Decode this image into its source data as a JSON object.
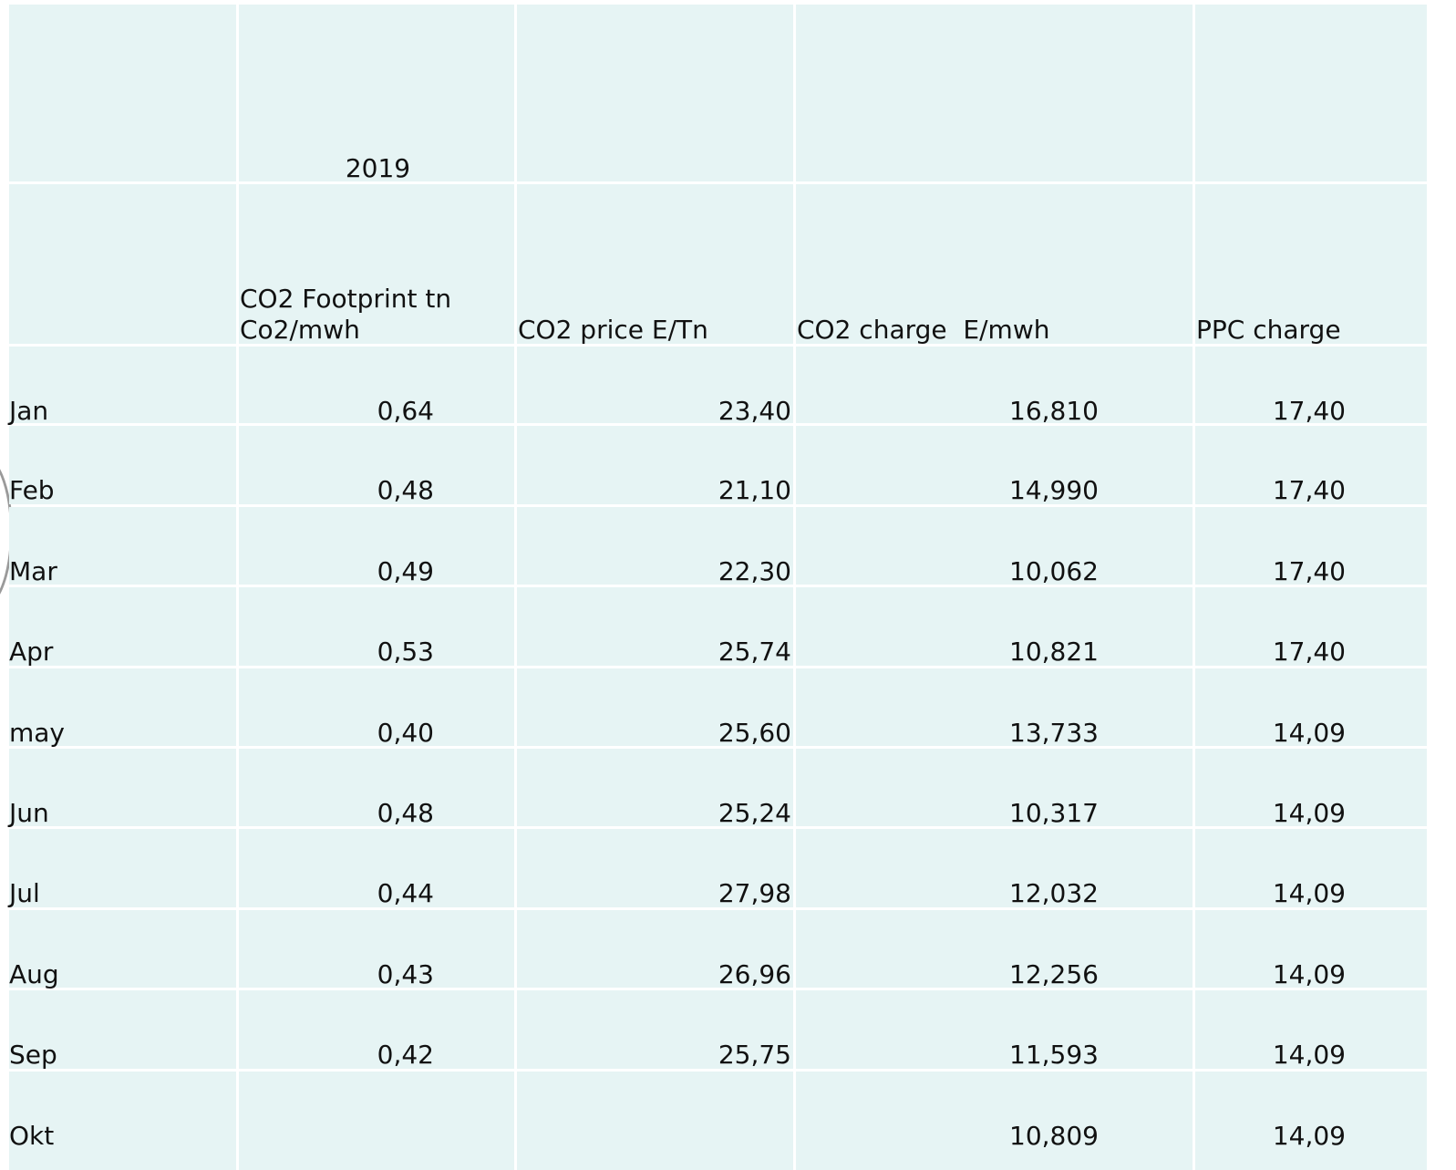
{
  "table": {
    "year": "2019",
    "headers": [
      "CO2 Footprint tn Co2/mwh",
      "CO2 price E/Tn",
      "CO2 charge  E/mwh",
      "PPC charge"
    ],
    "rows": [
      [
        "Jan",
        "0,64",
        "23,40",
        "16,810",
        "17,40"
      ],
      [
        "Feb",
        "0,48",
        "21,10",
        "14,990",
        "17,40"
      ],
      [
        "Mar",
        "0,49",
        "22,30",
        "10,062",
        "17,40"
      ],
      [
        "Apr",
        "0,53",
        "25,74",
        "10,821",
        "17,40"
      ],
      [
        "may",
        "0,40",
        "25,60",
        "13,733",
        "14,09"
      ],
      [
        "Jun",
        "0,48",
        "25,24",
        "10,317",
        "14,09"
      ],
      [
        "Jul",
        "0,44",
        "27,98",
        "12,032",
        "14,09"
      ],
      [
        "Aug",
        "0,43",
        "26,96",
        "12,256",
        "14,09"
      ],
      [
        "Sep",
        "0,42",
        "25,75",
        "11,593",
        "14,09"
      ],
      [
        "Okt",
        null,
        null,
        "10,809",
        "14,09"
      ]
    ]
  }
}
